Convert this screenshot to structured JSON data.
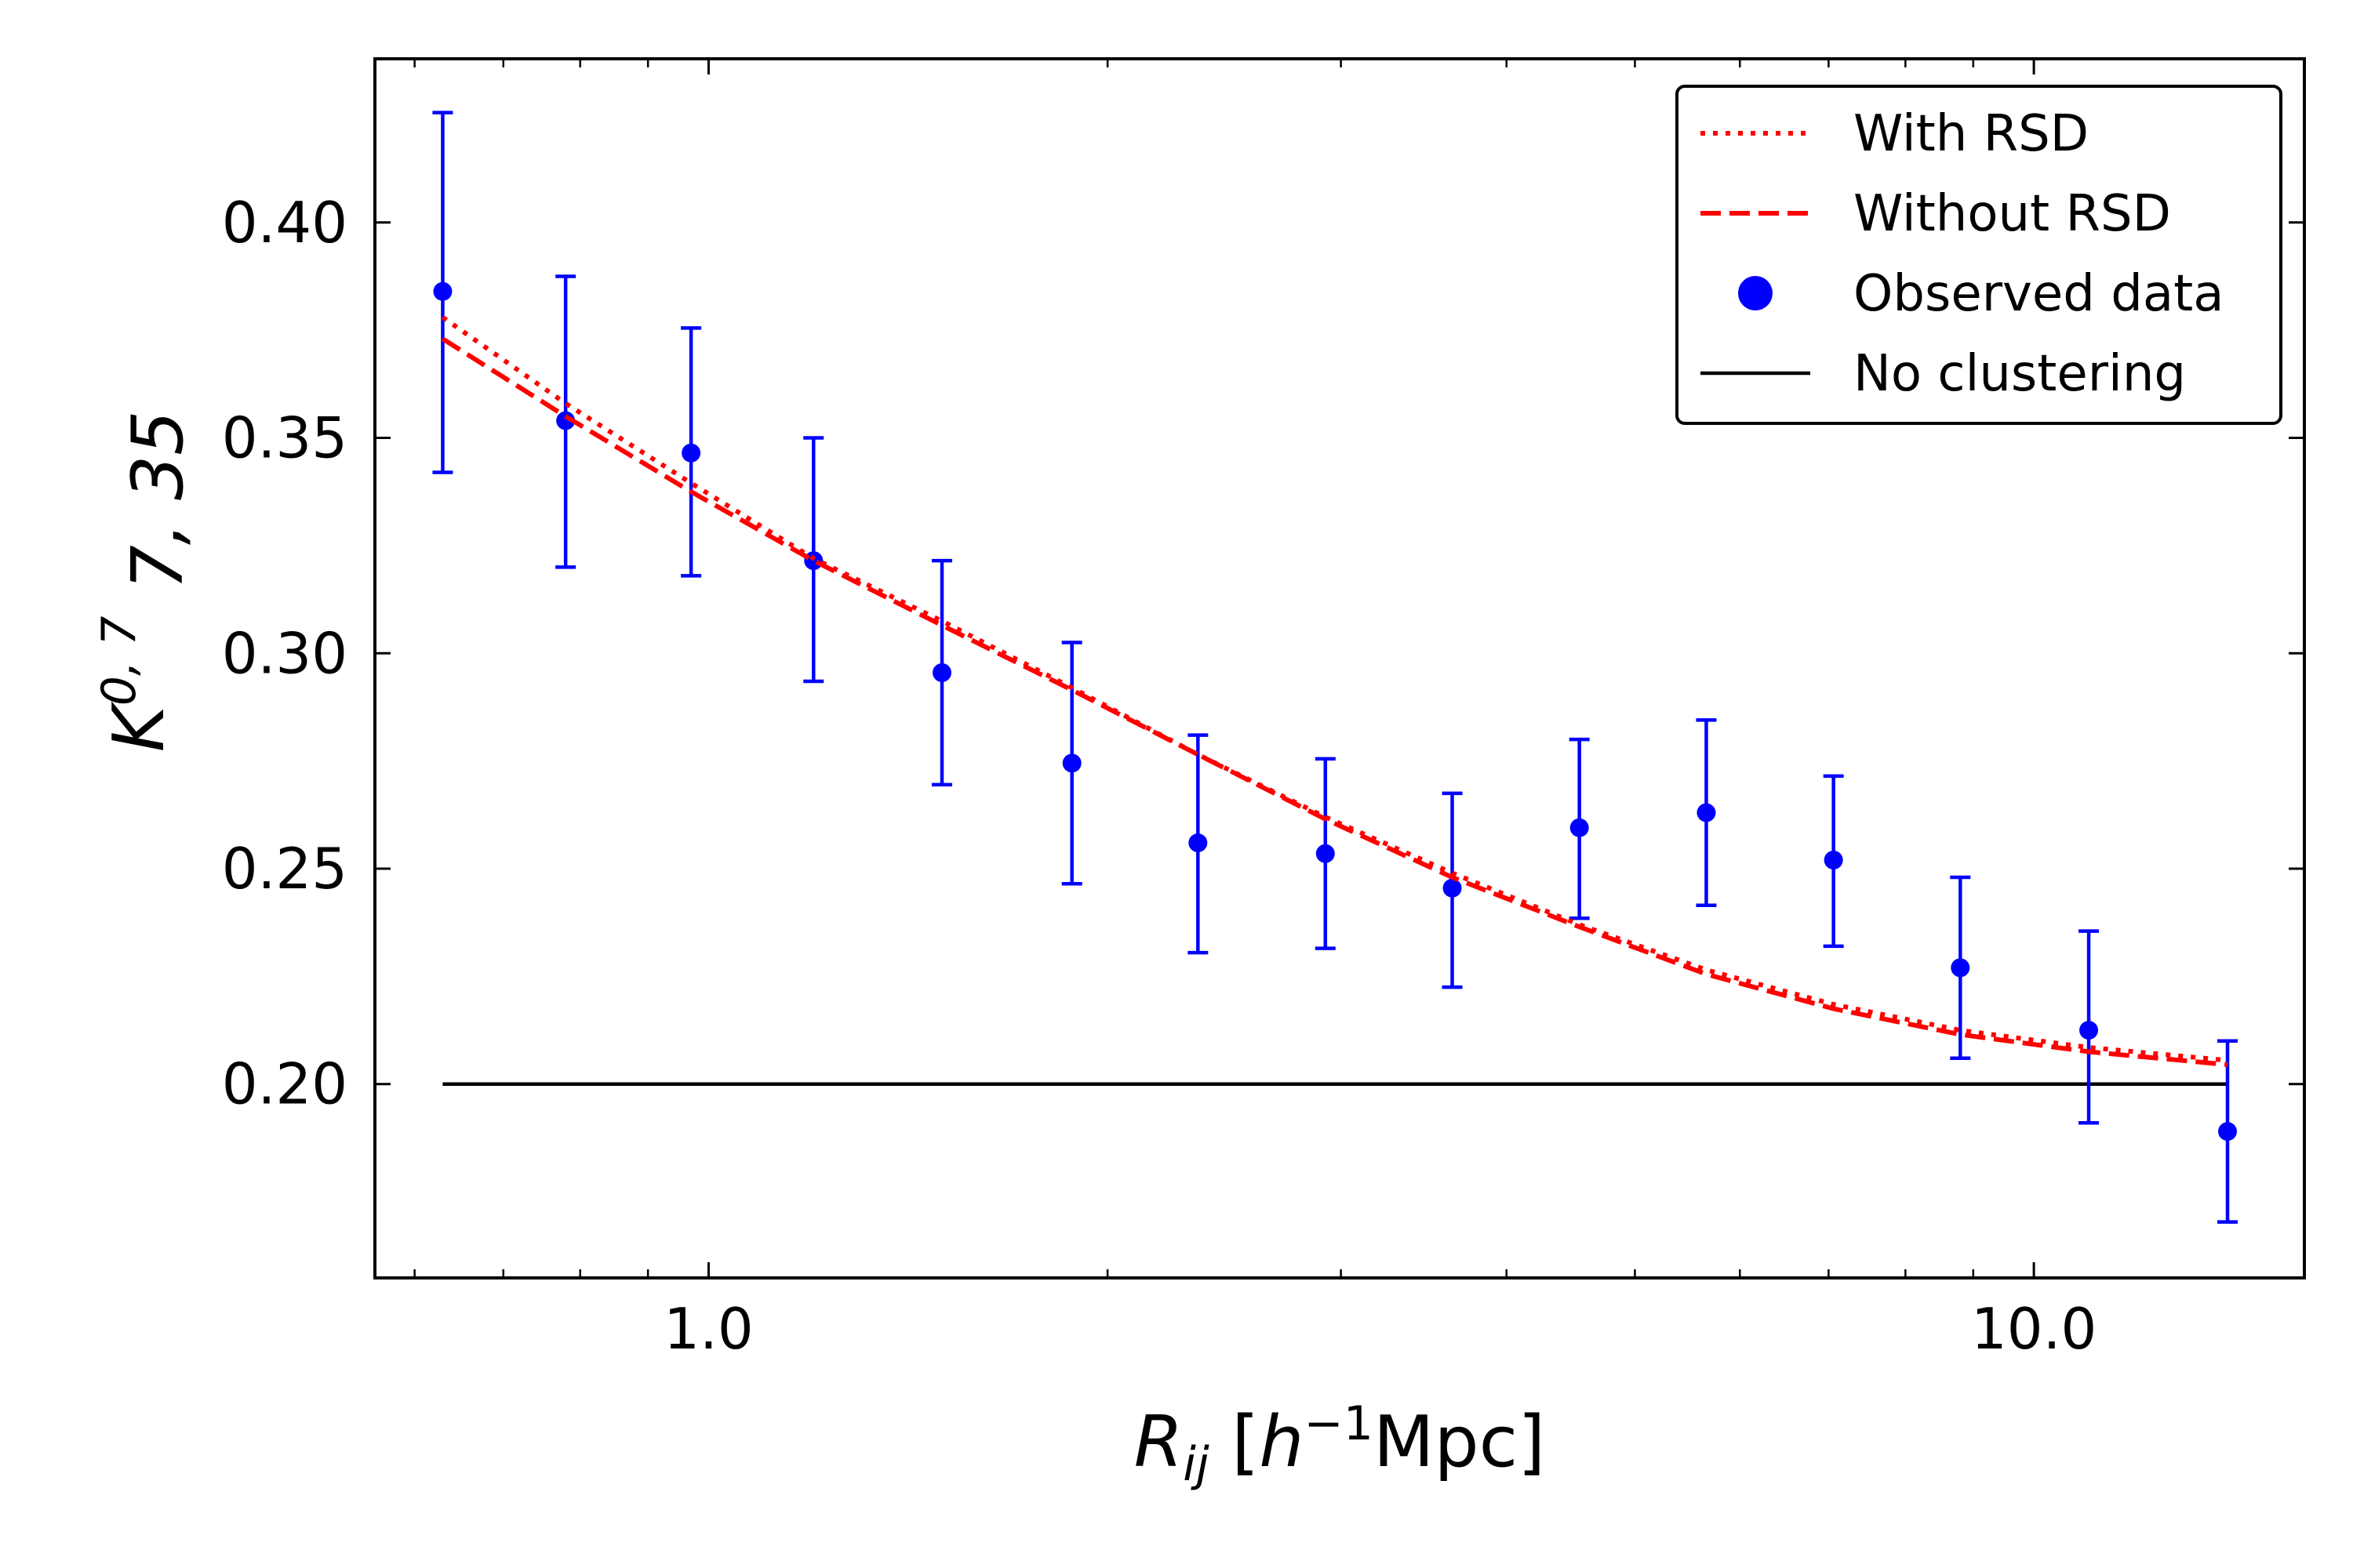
{
  "chart_data": {
    "type": "scatter",
    "xscale": "log",
    "xlim": [
      0.56,
      16.0
    ],
    "ylim": [
      0.155,
      0.438
    ],
    "xticks": [
      {
        "value": 1.0,
        "label": "1.0"
      },
      {
        "value": 10.0,
        "label": "10.0"
      }
    ],
    "yticks": [
      {
        "value": 0.2,
        "label": "0.20"
      },
      {
        "value": 0.25,
        "label": "0.25"
      },
      {
        "value": 0.3,
        "label": "0.30"
      },
      {
        "value": 0.35,
        "label": "0.35"
      },
      {
        "value": 0.4,
        "label": "0.40"
      }
    ],
    "xlabel": {
      "main": "R",
      "sub": "ij",
      "unit_open": " [",
      "unit_var": "h",
      "unit_exp": "−1",
      "unit_rest": "Mpc]"
    },
    "ylabel": {
      "main": "K",
      "sup": "0, 7",
      "sub": "7, 35"
    },
    "grid": false,
    "legend_position": "top-right",
    "series": [
      {
        "name": "With RSD",
        "style": "dotted",
        "color": "#ff0000",
        "x": [
          0.63,
          0.78,
          0.97,
          1.2,
          1.5,
          1.88,
          2.34,
          2.92,
          3.64,
          4.54,
          5.66,
          7.06,
          8.8,
          11.0,
          14.0
        ],
        "y": [
          0.378,
          0.358,
          0.3395,
          0.322,
          0.3075,
          0.292,
          0.2765,
          0.262,
          0.249,
          0.237,
          0.2265,
          0.2185,
          0.2125,
          0.2085,
          0.2055
        ]
      },
      {
        "name": "Without RSD",
        "style": "dashed",
        "color": "#ff0000",
        "x": [
          0.63,
          0.78,
          0.97,
          1.2,
          1.5,
          1.88,
          2.34,
          2.92,
          3.64,
          4.54,
          5.66,
          7.06,
          8.8,
          11.0,
          14.0
        ],
        "y": [
          0.373,
          0.355,
          0.3375,
          0.3215,
          0.3065,
          0.2915,
          0.2765,
          0.2615,
          0.248,
          0.2365,
          0.2255,
          0.2175,
          0.2115,
          0.2075,
          0.2045
        ]
      },
      {
        "name": "Observed data",
        "style": "errorbar",
        "color": "#0000ff",
        "x": [
          0.63,
          0.78,
          0.97,
          1.2,
          1.5,
          1.88,
          2.34,
          2.92,
          3.64,
          4.54,
          5.66,
          7.06,
          8.8,
          11.0,
          14.0
        ],
        "y": [
          0.384,
          0.354,
          0.3465,
          0.3215,
          0.2955,
          0.2745,
          0.256,
          0.2535,
          0.2455,
          0.2595,
          0.263,
          0.252,
          0.227,
          0.2125,
          0.189
        ],
        "yerr_low": [
          0.342,
          0.32,
          0.318,
          0.2935,
          0.2695,
          0.2465,
          0.2305,
          0.2315,
          0.2225,
          0.2385,
          0.2415,
          0.232,
          0.206,
          0.191,
          0.168
        ],
        "yerr_high": [
          0.4255,
          0.3875,
          0.3755,
          0.35,
          0.3215,
          0.3025,
          0.281,
          0.2755,
          0.2675,
          0.28,
          0.2845,
          0.2715,
          0.248,
          0.2355,
          0.21
        ]
      },
      {
        "name": "No clustering",
        "style": "solid",
        "color": "#000000",
        "x": [
          0.63,
          14.0
        ],
        "y": [
          0.2,
          0.2
        ]
      }
    ]
  }
}
